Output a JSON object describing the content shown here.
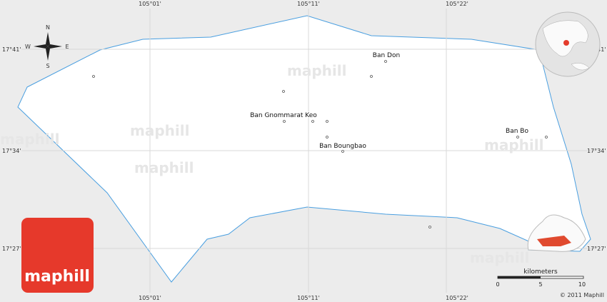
{
  "map": {
    "longitudes": [
      "105°01'",
      "105°11'",
      "105°22'"
    ],
    "latitudes": [
      "17°41'",
      "17°34'",
      "17°27'"
    ],
    "compass": {
      "north": "N",
      "south": "S",
      "east": "E",
      "west": "W"
    },
    "places": [
      "Ban Don",
      "Ban Gnommarat Keo",
      "Ban Boungbao",
      "Ban Bo"
    ],
    "watermark": "maphill",
    "scale": {
      "unit": "kilometers",
      "labels": [
        "0",
        "5",
        "10"
      ]
    },
    "logo": "maphill",
    "copyright": "© 2011 Maphill"
  }
}
